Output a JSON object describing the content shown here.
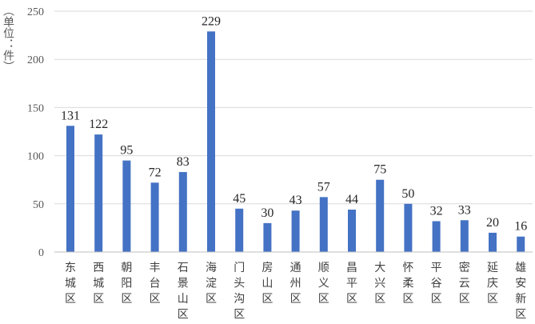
{
  "chart_data": {
    "type": "bar",
    "title": "",
    "xlabel": "",
    "ylabel": "（单位：件）",
    "categories": [
      "东城区",
      "西城区",
      "朝阳区",
      "丰台区",
      "石景山区",
      "海淀区",
      "门头沟区",
      "房山区",
      "通州区",
      "顺义区",
      "昌平区",
      "大兴区",
      "怀柔区",
      "平谷区",
      "密云区",
      "延庆区",
      "雄安新区"
    ],
    "values": [
      131,
      122,
      95,
      72,
      83,
      229,
      45,
      30,
      43,
      57,
      44,
      75,
      50,
      32,
      33,
      20,
      16
    ],
    "ylim": [
      0,
      250
    ],
    "yticks": [
      0,
      50,
      100,
      150,
      200,
      250
    ],
    "grid": true,
    "legend": "none",
    "data_labels": true,
    "colors": {
      "bar": "#4472C4",
      "grid": "#D9D9D9",
      "axis": "#BFBFBF"
    }
  }
}
